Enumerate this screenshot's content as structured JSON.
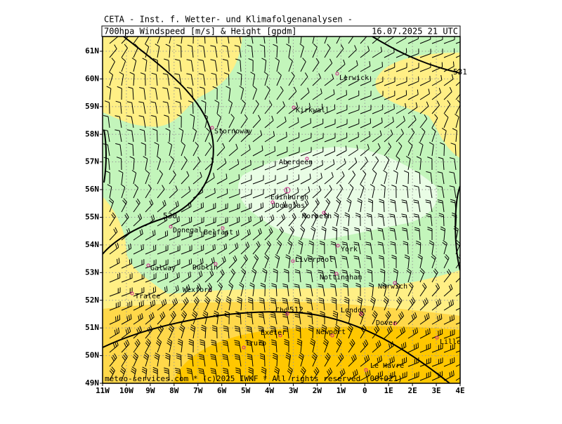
{
  "header": {
    "institute": "CETA - Inst. f. Wetter- und Klimafolgenanalysen -",
    "product": "700hpa Windspeed [m/s] & Height [gpdm]",
    "valid": "16.07.2025 21 UTC"
  },
  "footer": "meteo-services.com * (c)2025 IWKF * All rights reserved (00+021)",
  "axes": {
    "lat": [
      "61N",
      "60N",
      "59N",
      "58N",
      "57N",
      "56N",
      "55N",
      "54N",
      "53N",
      "52N",
      "51N",
      "50N",
      "49N"
    ],
    "lon": [
      "11W",
      "10W",
      "9W",
      "8W",
      "7W",
      "6W",
      "5W",
      "4W",
      "3W",
      "2W",
      "1W",
      "0",
      "1E",
      "2E",
      "3E",
      "4E"
    ]
  },
  "contour_labels": [
    "531",
    "530",
    "512"
  ],
  "cities": [
    "Lerwick",
    "Kirkwall",
    "Stornoway",
    "Aberdeen",
    "Edinburgh",
    "Douglas",
    "Morpeth",
    "Donegal",
    "Belfast",
    "York",
    "Liverpool",
    "Galway",
    "Dublin",
    "Nottingham",
    "Norwich",
    "Wexford",
    "Tralee",
    "Chd",
    "London",
    "Dover",
    "Exeter",
    "Newport",
    "Truro",
    "Lille",
    "Le Havre"
  ]
}
